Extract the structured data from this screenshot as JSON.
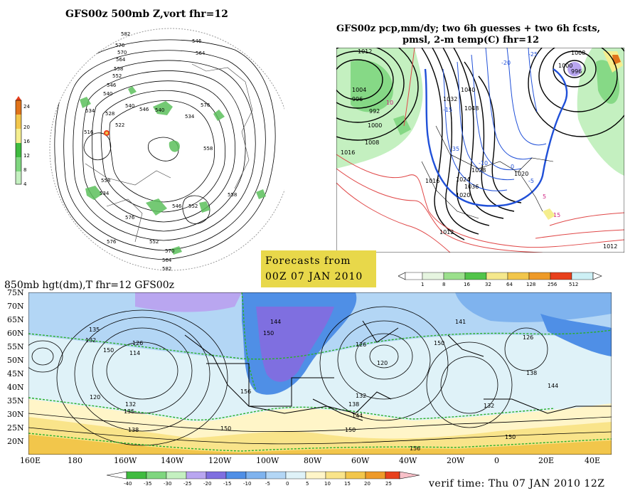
{
  "panels": {
    "polar": {
      "title": "GFS00z   500mb Z,vort     fhr=12",
      "colorbar": {
        "ticks": [
          "24",
          "20",
          "16",
          "12",
          "8",
          "4"
        ],
        "colors": [
          "#e0731a",
          "#f2c64b",
          "#f5ee8e",
          "#3fbb3f",
          "#7fd67f",
          "#c4f0c0"
        ]
      },
      "contour_labels": [
        "582",
        "576",
        "570",
        "564",
        "558",
        "552",
        "546",
        "540",
        "534",
        "528",
        "522",
        "516",
        "540",
        "546",
        "540",
        "534",
        "546",
        "564",
        "576",
        "558",
        "576",
        "570",
        "582",
        "552",
        "564",
        "558",
        "534",
        "546",
        "552",
        "576",
        "558"
      ]
    },
    "precip": {
      "title_line1": "GFS00z pcp,mm/dy; two 6h guesses + two 6h fcsts,",
      "title_line2": "pmsl, 2-m temp(C)  fhr=12",
      "isobar_labels": [
        "1012",
        "1004",
        "996",
        "992",
        "1000",
        "1008",
        "1016",
        "1024",
        "1040",
        "1048",
        "1036",
        "1020",
        "1028",
        "1032",
        "1016",
        "1012",
        "1020",
        "1008",
        "996",
        "1000",
        "1012"
      ],
      "temp_labels": [
        "-25",
        "-20",
        "-15",
        "-10",
        "-5",
        "0",
        "10",
        "15",
        "5",
        "-35"
      ],
      "colorbar": {
        "ticks": [
          "1",
          "8",
          "16",
          "32",
          "64",
          "128",
          "256",
          "512"
        ],
        "colors": [
          "#e6f5e0",
          "#9be08c",
          "#52c44a",
          "#f5e88c",
          "#f2c64b",
          "#ee9a28",
          "#e8401c",
          "#cdf0f5"
        ]
      }
    },
    "forecast": {
      "line1": "Forecasts from",
      "line2": "00Z  07 JAN  2010"
    },
    "temp850": {
      "title": "850mb hgt(dm),T  fhr=12 GFS00z",
      "lat_labels": [
        "75N",
        "70N",
        "65N",
        "60N",
        "55N",
        "50N",
        "45N",
        "40N",
        "35N",
        "30N",
        "25N",
        "20N"
      ],
      "lon_labels": [
        "160E",
        "180",
        "160W",
        "140W",
        "120W",
        "100W",
        "80W",
        "60W",
        "40W",
        "20W",
        "0",
        "20E",
        "40E"
      ],
      "height_labels": [
        "135",
        "132",
        "126",
        "114",
        "120",
        "126",
        "132",
        "135",
        "144",
        "150",
        "141",
        "150",
        "126",
        "120",
        "132",
        "138",
        "144",
        "150",
        "138",
        "132",
        "144",
        "150",
        "156",
        "156",
        "150",
        "138",
        "150"
      ],
      "colorbar": {
        "ticks": [
          "-40",
          "-35",
          "-30",
          "-25",
          "-20",
          "-15",
          "-10",
          "-5",
          "0",
          "5",
          "10",
          "15",
          "20",
          "25"
        ],
        "colors": [
          "#3fbb3f",
          "#7fd67f",
          "#c4f0c0",
          "#b9a6f0",
          "#7f6fe0",
          "#4f8fe6",
          "#7fb3ee",
          "#b3d6f5",
          "#dff2f8",
          "#fff5c8",
          "#f9e48a",
          "#f2c64b",
          "#ee9a28",
          "#e8401c",
          "#f8c0c8"
        ]
      },
      "verif": "verif time: Thu 07 JAN 2010 12Z"
    }
  }
}
